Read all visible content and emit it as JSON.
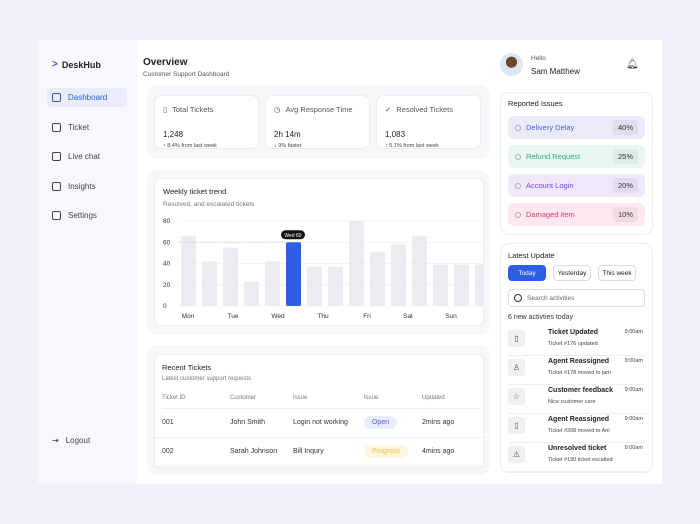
{
  "app": {
    "name": "DeskHub"
  },
  "sidebar": {
    "items": [
      {
        "label": "Dashboard",
        "icon": "grid-icon",
        "active": true
      },
      {
        "label": "Ticket",
        "icon": "ticket-icon"
      },
      {
        "label": "Live chat",
        "icon": "chat-icon"
      },
      {
        "label": "Insights",
        "icon": "chart-icon"
      },
      {
        "label": "Settings",
        "icon": "gear-icon"
      }
    ],
    "logout": "Logout"
  },
  "header": {
    "title": "Overview",
    "subtitle": "Customer Support Dashboard"
  },
  "stats": [
    {
      "label": "Total Tickets",
      "value": "1,248",
      "delta": "↑ 8.4% from last week"
    },
    {
      "label": "Avg Response Time",
      "value": "2h 14m",
      "delta": "↓ 9% faster"
    },
    {
      "label": "Resolved Tickets",
      "value": "1,083",
      "delta": "↑ 5.1% from last week"
    }
  ],
  "chart_data": {
    "type": "bar",
    "title": "Weekly ticket trend",
    "subtitle": "Resolved, and escalated tickets",
    "yticks": [
      0,
      20,
      40,
      60,
      80
    ],
    "ylim": [
      0,
      80
    ],
    "day_labels": [
      "Mon",
      "Tue",
      "Wed",
      "Thu",
      "Fri",
      "Sat",
      "Sun"
    ],
    "values": [
      66,
      42,
      55,
      23,
      42,
      60,
      37,
      37,
      80,
      51,
      58,
      66,
      39,
      39,
      39
    ],
    "highlight_index": 5,
    "tooltip": "Wed 60",
    "colors": {
      "bar": "#ecebef",
      "highlight": "#2c5ee6"
    }
  },
  "recent": {
    "title": "Recent Tickets",
    "subtitle": "Latest customer support requests",
    "columns": [
      "Ticket ID",
      "Customer",
      "Issue",
      "Issue",
      "Updated"
    ],
    "rows": [
      {
        "id": "001",
        "customer": "John Smith",
        "issue": "Login not working",
        "status": "Open",
        "updated": "2mins ago"
      },
      {
        "id": "002",
        "customer": "Sarah Johnson",
        "issue": "Bill Inqury",
        "status": "Progress",
        "updated": "4mins ago"
      }
    ]
  },
  "user": {
    "greeting": "Hello",
    "name": "Sam Matthew"
  },
  "reported": {
    "title": "Reported Issues",
    "items": [
      {
        "label": "Delivery Delay",
        "pct": "40%",
        "color": "#4f63e0",
        "bg": "#e9ebfb"
      },
      {
        "label": "Refund Request",
        "pct": "25%",
        "color": "#27b36a",
        "bg": "#e8f8f0"
      },
      {
        "label": "Account Login",
        "pct": "20%",
        "color": "#7b3fe0",
        "bg": "#efe8fb"
      },
      {
        "label": "Damaged item",
        "pct": "10%",
        "color": "#e03a6a",
        "bg": "#fde8ef"
      }
    ]
  },
  "updates": {
    "title": "Latest Update",
    "tabs": [
      "Today",
      "Yesterday",
      "This week"
    ],
    "search_placeholder": "Search activities",
    "count_text": "6 new activties today",
    "items": [
      {
        "title": "Ticket Updated",
        "sub": "Ticket #176 updated",
        "time": "9:00am",
        "icon": "ticket-icon",
        "glyph": "▯"
      },
      {
        "title": "Agent Reassigned",
        "sub": "Ticket #178 moved to jam",
        "time": "9:00am",
        "icon": "user-icon",
        "glyph": "♙"
      },
      {
        "title": "Customer feedback",
        "sub": "Nice customer care",
        "time": "9:00am",
        "icon": "star-icon",
        "glyph": "☆"
      },
      {
        "title": "Agent Reassigned",
        "sub": "Ticket #208 moved to Ani",
        "time": "9:00am",
        "icon": "ticket-icon",
        "glyph": "▯"
      },
      {
        "title": "Unresolved ticket",
        "sub": "Ticket #190 ticket escalted",
        "time": "9:00am",
        "icon": "warning-icon",
        "glyph": "⚠"
      }
    ]
  }
}
